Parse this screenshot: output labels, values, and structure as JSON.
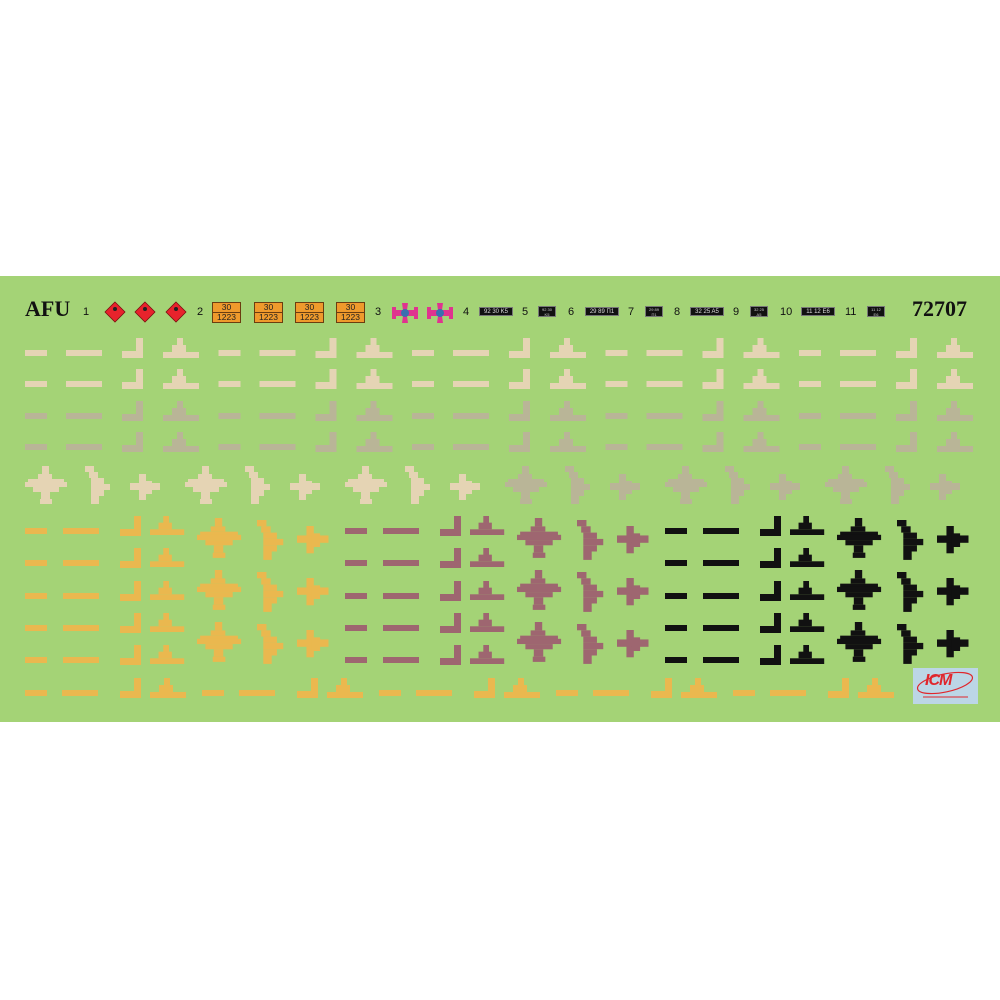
{
  "sheet": {
    "title": "AFU",
    "number": "72707",
    "background": "#a4d376"
  },
  "markings": [
    {
      "label": "1",
      "item": "hazard-diamond",
      "count": 3,
      "color": "#e8232c"
    },
    {
      "label": "2",
      "item": "orange-hazard-plate",
      "count": 4,
      "top": "30",
      "bottom": "1223",
      "color": "#ef9a2c"
    },
    {
      "label": "3",
      "item": "roundel-cross",
      "count": 2,
      "color": "#e0338f",
      "center_color": "#3a6fb0"
    },
    {
      "label": "4",
      "item": "licence-plate",
      "text": "92 30 K5"
    },
    {
      "label": "5",
      "item": "licence-plate-small",
      "top": "92 30",
      "bottom": "K5"
    },
    {
      "label": "6",
      "item": "licence-plate",
      "text": "29 89 П1"
    },
    {
      "label": "7",
      "item": "licence-plate-small",
      "top": "29 89",
      "bottom": "П1"
    },
    {
      "label": "8",
      "item": "licence-plate",
      "text": "32 25 A5"
    },
    {
      "label": "9",
      "item": "licence-plate-small",
      "top": "32 25",
      "bottom": "A5"
    },
    {
      "label": "10",
      "item": "licence-plate",
      "text": "11 12 E6"
    },
    {
      "label": "11",
      "item": "licence-plate-small",
      "top": "11 12",
      "bottom": "E6"
    }
  ],
  "decal_colors": {
    "sand": "#e5d4b4",
    "grey": "#b9b597",
    "yellow": "#eab84f",
    "mauve": "#9e6670",
    "black": "#111111"
  },
  "logo": {
    "text": "ICM"
  }
}
